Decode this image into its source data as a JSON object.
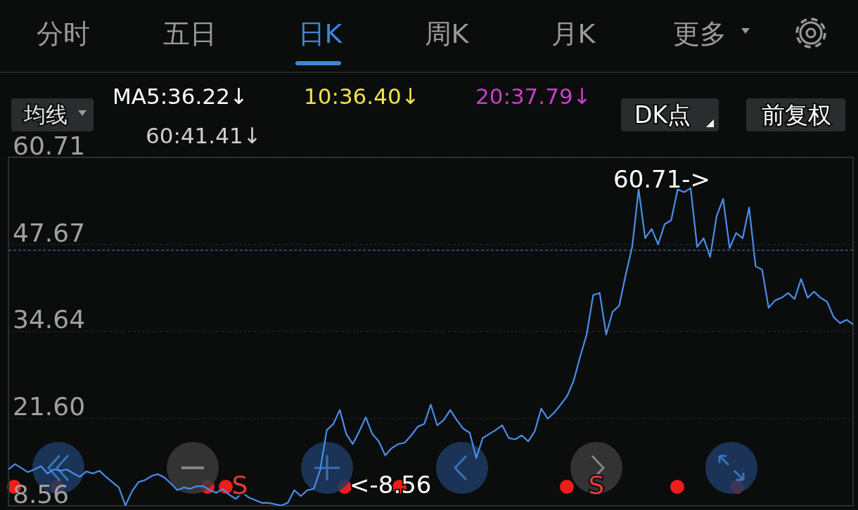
{
  "chart_data": {
    "type": "line",
    "categories": [
      null,
      null,
      null,
      null,
      null,
      null,
      null,
      null,
      null,
      null,
      null,
      null,
      null,
      null,
      null,
      null,
      null,
      null,
      null,
      null,
      null,
      null,
      null,
      null,
      null,
      null,
      null,
      null,
      null,
      null,
      null,
      null,
      null,
      null,
      null,
      null,
      null,
      null,
      null,
      null,
      null,
      null,
      null,
      null,
      null,
      null,
      null,
      null,
      null,
      null,
      null,
      null,
      null,
      null,
      null,
      null,
      null,
      null,
      null,
      null,
      null,
      null,
      null,
      null,
      null,
      null,
      null,
      null,
      null,
      null,
      null,
      null,
      null,
      null,
      null,
      null,
      null,
      null,
      null,
      null,
      null,
      null,
      null,
      null,
      null,
      null,
      null,
      null,
      null,
      null,
      null,
      null,
      null,
      null,
      null,
      null,
      null,
      null,
      null,
      null,
      null,
      null,
      null,
      null,
      null,
      null,
      null,
      null,
      null,
      null,
      null,
      null,
      null,
      null,
      null,
      null,
      null,
      null,
      null,
      null,
      null,
      null,
      null,
      null,
      null,
      null,
      null,
      null,
      null,
      null,
      null
    ],
    "values": [
      14.0,
      14.8,
      14.2,
      13.6,
      14.0,
      14.5,
      13.4,
      14.0,
      13.8,
      14.0,
      13.4,
      12.9,
      13.7,
      13.4,
      13.8,
      12.9,
      12.1,
      11.3,
      8.6,
      10.7,
      12.1,
      12.4,
      13.0,
      13.3,
      12.8,
      11.9,
      10.9,
      11.3,
      11.1,
      11.5,
      11.5,
      10.9,
      10.5,
      11.1,
      10.2,
      9.6,
      10.5,
      9.8,
      9.4,
      9.0,
      9.0,
      8.8,
      8.6,
      9.0,
      10.9,
      10.0,
      10.9,
      11.1,
      14.0,
      19.9,
      20.8,
      22.9,
      19.3,
      17.8,
      19.7,
      21.8,
      19.3,
      18.2,
      16.1,
      17.2,
      17.8,
      18.0,
      19.1,
      20.4,
      20.8,
      23.7,
      20.6,
      21.4,
      22.9,
      21.4,
      20.1,
      19.5,
      15.7,
      18.7,
      19.3,
      19.9,
      20.6,
      18.7,
      18.5,
      19.1,
      18.2,
      19.7,
      23.1,
      21.6,
      22.5,
      23.7,
      25.0,
      27.3,
      30.9,
      34.2,
      40.1,
      40.4,
      34.2,
      37.6,
      38.5,
      43.1,
      47.3,
      55.9,
      48.6,
      50.0,
      47.7,
      50.7,
      51.3,
      55.9,
      55.5,
      56.1,
      47.3,
      48.6,
      45.8,
      51.9,
      54.5,
      47.1,
      49.4,
      48.6,
      53.2,
      44.4,
      43.9,
      38.2,
      39.3,
      39.7,
      40.4,
      39.5,
      42.5,
      39.7,
      40.6,
      39.7,
      39.1,
      36.8,
      35.9,
      36.4,
      35.7
    ],
    "color": "#4a8ee8",
    "ylim": [
      8.56,
      60.71
    ],
    "yticks": [
      8.56,
      {
        "value": 21.6,
        "label": "21.60"
      },
      34.64,
      47.67,
      60.71
    ],
    "grid": "y",
    "tick_labels": "y",
    "ref_lines": [
      {
        "axis": "y",
        "value": 46.8,
        "color": "#2f5f9f",
        "line_style": "dashed"
      }
    ],
    "annotations": [
      "分时",
      "五日",
      "日K",
      "周K",
      "月K",
      "更多",
      "均线",
      "MA5:36.22↓",
      "10:36.40↓",
      "20:37.79↓",
      "60:41.41↓",
      "DK点",
      "前复权",
      "60.71->",
      "<-8.56",
      "S",
      "S"
    ]
  }
}
